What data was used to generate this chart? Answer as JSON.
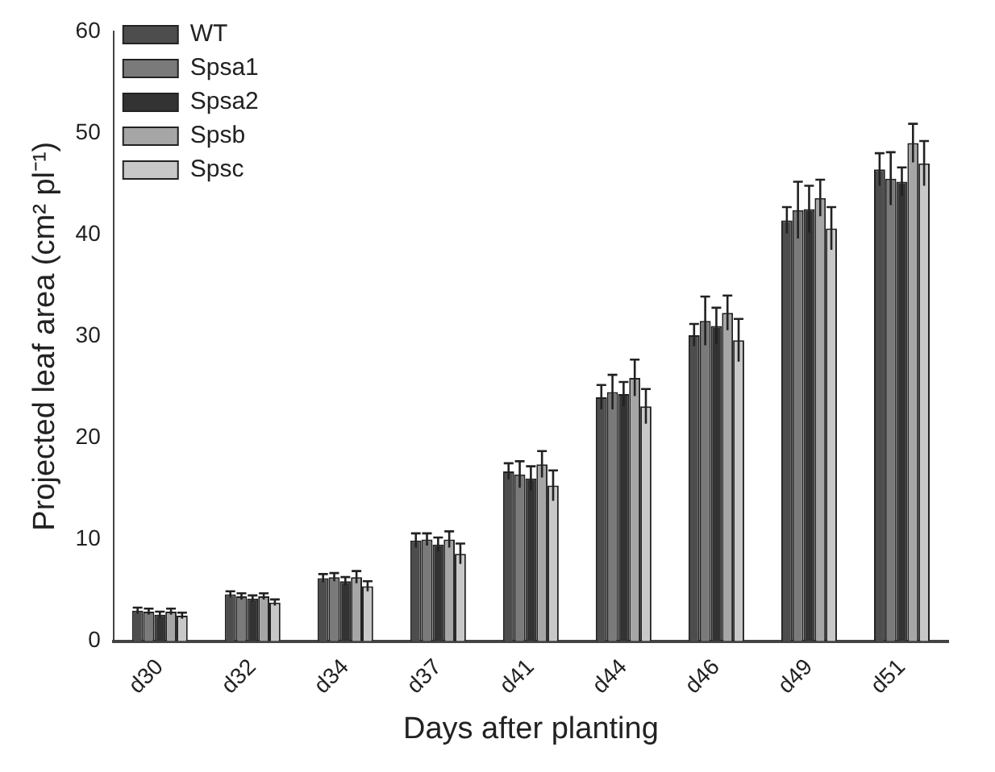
{
  "chart_data": {
    "type": "bar",
    "xlabel": "Days after planting",
    "ylabel": "Projected leaf area (cm² pl⁻¹)",
    "categories": [
      "d30",
      "d32",
      "d34",
      "d37",
      "d41",
      "d44",
      "d46",
      "d49",
      "d51"
    ],
    "series": [
      {
        "name": "WT",
        "color": "#4d4d4d",
        "values": [
          3.0,
          4.6,
          6.2,
          9.9,
          16.7,
          24.0,
          30.1,
          41.4,
          46.4
        ],
        "errors": [
          0.3,
          0.3,
          0.4,
          0.7,
          0.8,
          1.2,
          1.1,
          1.3,
          1.6
        ]
      },
      {
        "name": "Spsa1",
        "color": "#7a7a7a",
        "values": [
          2.9,
          4.4,
          6.3,
          10.0,
          16.4,
          24.5,
          31.5,
          42.4,
          45.5
        ],
        "errors": [
          0.3,
          0.3,
          0.4,
          0.6,
          1.3,
          1.7,
          2.4,
          2.8,
          2.6
        ]
      },
      {
        "name": "Spsa2",
        "color": "#333333",
        "values": [
          2.6,
          4.2,
          5.9,
          9.5,
          16.0,
          24.3,
          31.0,
          42.5,
          45.2
        ],
        "errors": [
          0.3,
          0.3,
          0.4,
          0.7,
          1.2,
          1.2,
          1.8,
          2.3,
          1.4
        ]
      },
      {
        "name": "Spsb",
        "color": "#a6a6a6",
        "values": [
          2.9,
          4.4,
          6.3,
          10.0,
          17.4,
          25.9,
          32.3,
          43.6,
          49.0
        ],
        "errors": [
          0.3,
          0.3,
          0.6,
          0.8,
          1.3,
          1.8,
          1.7,
          1.8,
          1.9
        ]
      },
      {
        "name": "Spsc",
        "color": "#c8c8c8",
        "values": [
          2.5,
          3.8,
          5.4,
          8.6,
          15.3,
          23.1,
          29.6,
          40.6,
          47.0
        ],
        "errors": [
          0.3,
          0.3,
          0.5,
          1.0,
          1.5,
          1.7,
          2.1,
          2.1,
          2.2
        ]
      }
    ],
    "ylim": [
      0,
      60
    ],
    "yticks": [
      0,
      10,
      20,
      30,
      40,
      50,
      60
    ],
    "grid": false,
    "legend": "top left"
  }
}
